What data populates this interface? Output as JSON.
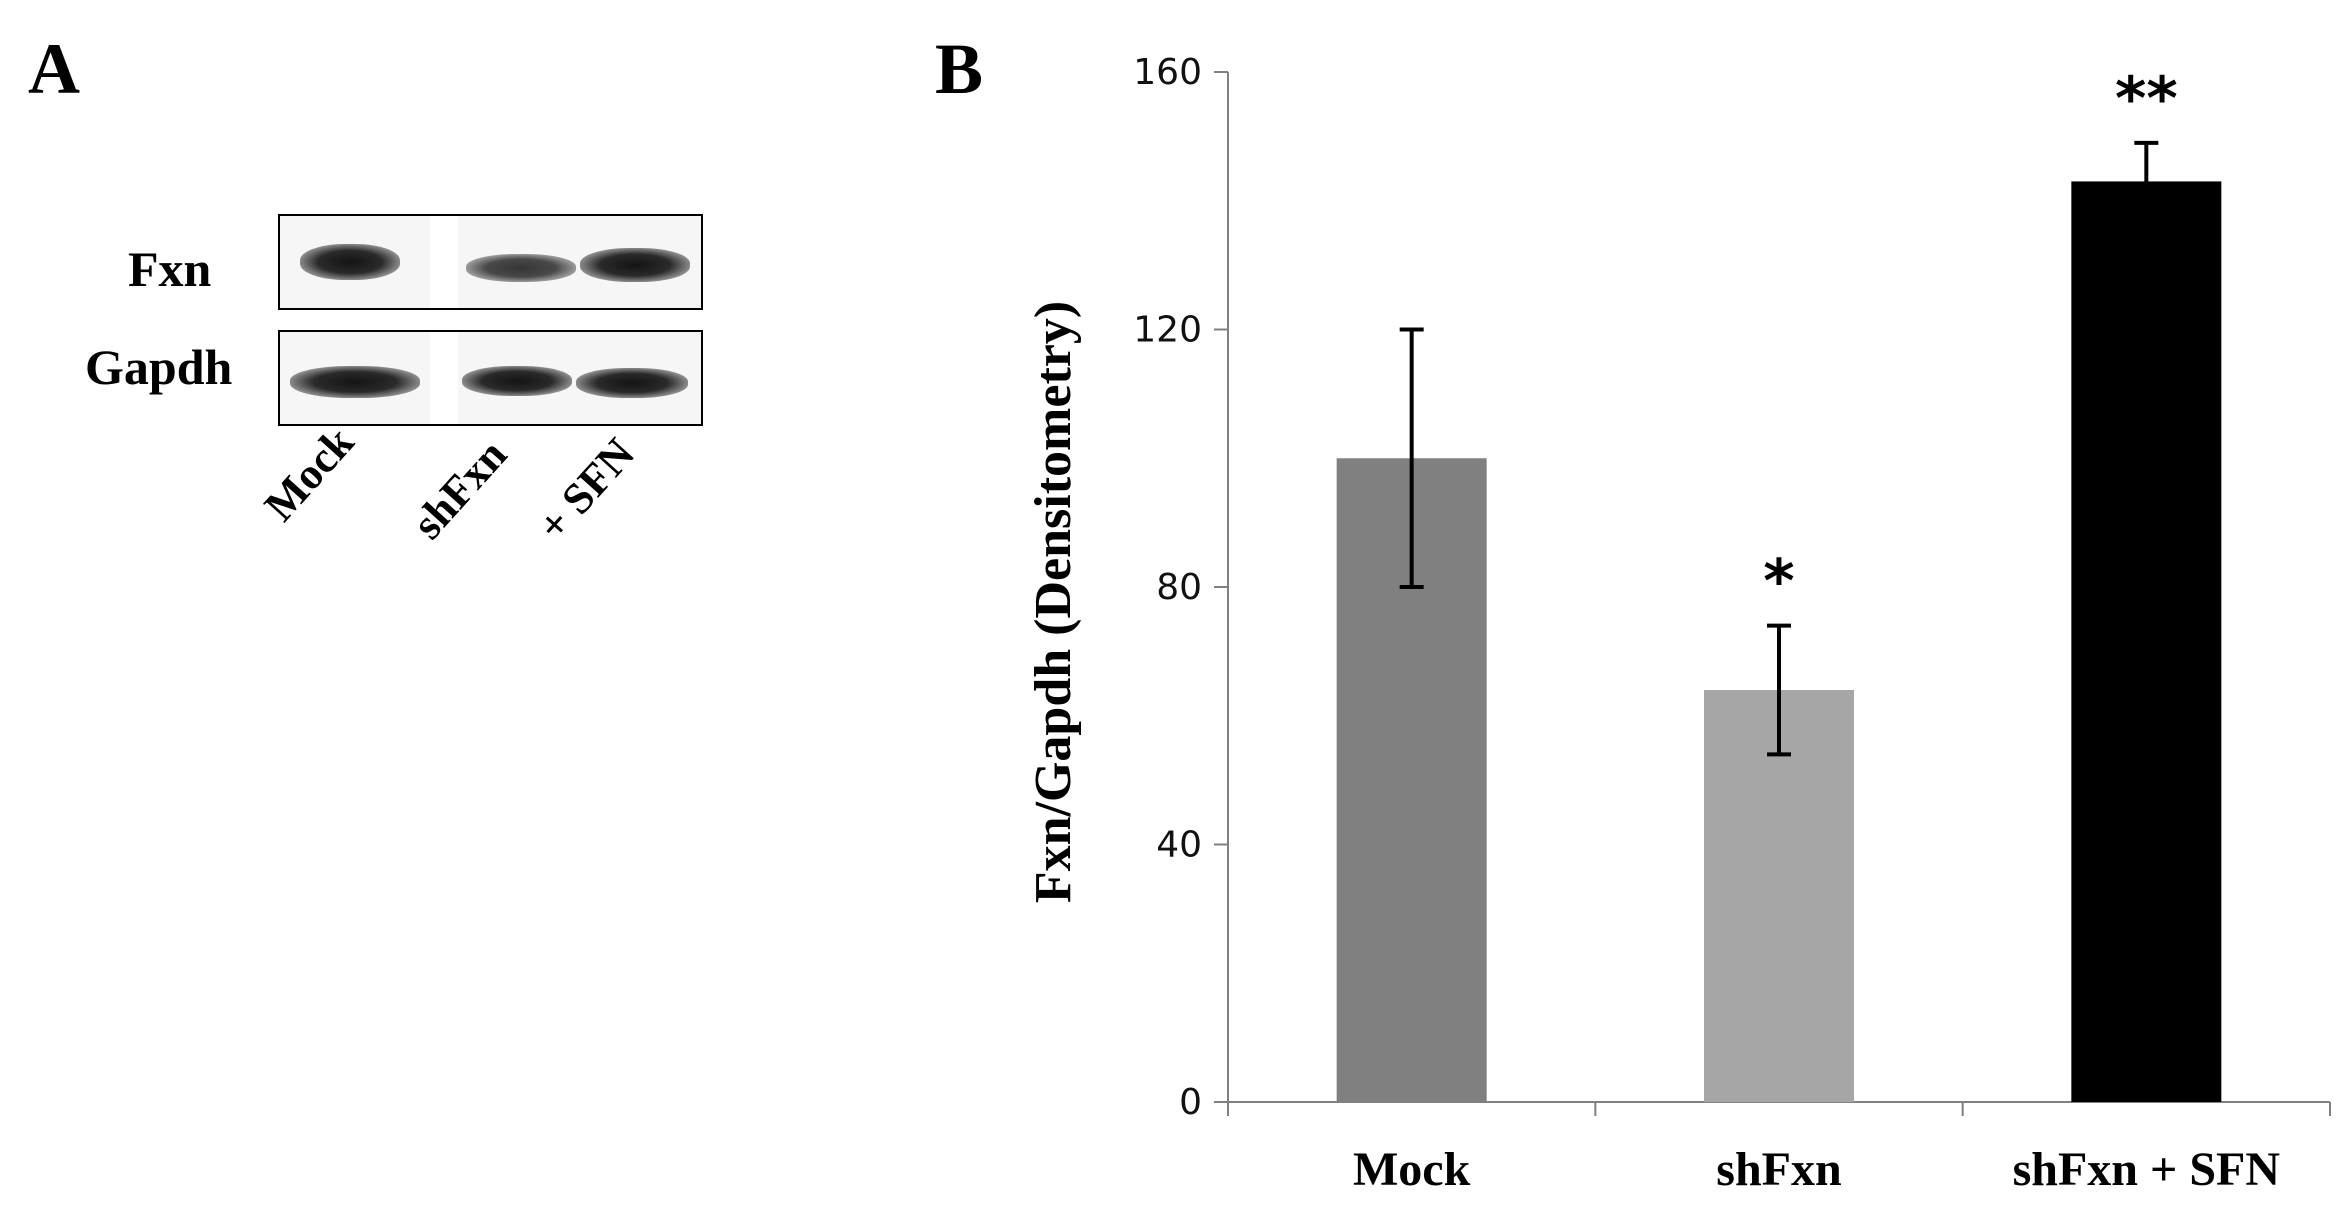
{
  "panel_a": {
    "letter": "A",
    "row_labels": [
      "Fxn",
      "Gapdh"
    ],
    "lane_labels": [
      "Mock",
      "shFxn",
      "+ SFN"
    ]
  },
  "panel_b": {
    "letter": "B"
  },
  "chart_data": {
    "type": "bar",
    "title": "",
    "xlabel": "",
    "ylabel": "Fxn/Gapdh (Densitometry)",
    "categories": [
      "Mock",
      "shFxn",
      "shFxn + SFN"
    ],
    "values": [
      100,
      64,
      143
    ],
    "error": [
      20,
      10,
      6
    ],
    "significance": [
      "",
      "*",
      "**"
    ],
    "bar_colors": [
      "#808080",
      "#a6a6a6",
      "#000000"
    ],
    "ylim": [
      0,
      160
    ],
    "yticks": [
      0,
      40,
      80,
      120,
      160
    ],
    "grid": false,
    "legend": "none"
  }
}
